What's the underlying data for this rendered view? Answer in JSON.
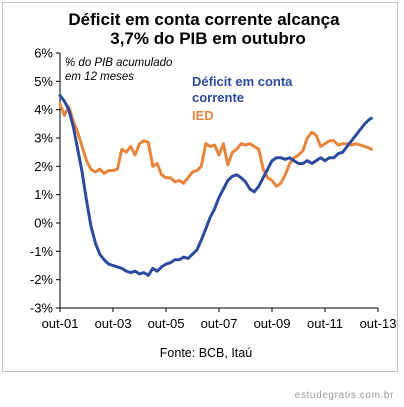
{
  "chart_data": {
    "type": "line",
    "title": "Déficit em conta corrente alcança 3,7% do PIB em outubro",
    "title_lines": [
      "Déficit em conta corrente alcança",
      "3,7% do PIB em outubro"
    ],
    "annotation_lines": [
      "% do PIB acumulado",
      "em 12 meses"
    ],
    "source": "Fonte: BCB, Itaú",
    "x_tick_labels": [
      "out-01",
      "out-03",
      "out-05",
      "out-07",
      "out-09",
      "out-11",
      "out-13"
    ],
    "y_tick_labels": [
      "-3%",
      "-2%",
      "-1%",
      "0%",
      "1%",
      "2%",
      "3%",
      "4%",
      "5%",
      "6%"
    ],
    "x_unit": "months since out-01",
    "x_range": [
      0,
      144
    ],
    "ylim": [
      -3,
      6
    ],
    "grid": false,
    "legend_placement": "inside, upper middle (direct labels)",
    "series": [
      {
        "name": "Déficit em conta corrente",
        "color": "#2e4a9e",
        "points": [
          [
            0,
            4.5
          ],
          [
            2,
            4.3
          ],
          [
            4,
            4.0
          ],
          [
            6,
            3.4
          ],
          [
            8,
            2.6
          ],
          [
            10,
            1.8
          ],
          [
            12,
            0.8
          ],
          [
            14,
            -0.1
          ],
          [
            16,
            -0.7
          ],
          [
            18,
            -1.1
          ],
          [
            20,
            -1.3
          ],
          [
            22,
            -1.45
          ],
          [
            24,
            -1.5
          ],
          [
            26,
            -1.55
          ],
          [
            28,
            -1.6
          ],
          [
            30,
            -1.7
          ],
          [
            32,
            -1.75
          ],
          [
            34,
            -1.7
          ],
          [
            36,
            -1.8
          ],
          [
            38,
            -1.75
          ],
          [
            40,
            -1.85
          ],
          [
            42,
            -1.6
          ],
          [
            44,
            -1.7
          ],
          [
            46,
            -1.55
          ],
          [
            48,
            -1.45
          ],
          [
            50,
            -1.4
          ],
          [
            52,
            -1.3
          ],
          [
            54,
            -1.3
          ],
          [
            56,
            -1.2
          ],
          [
            58,
            -1.25
          ],
          [
            60,
            -1.1
          ],
          [
            62,
            -0.95
          ],
          [
            64,
            -0.6
          ],
          [
            66,
            -0.2
          ],
          [
            68,
            0.2
          ],
          [
            70,
            0.5
          ],
          [
            72,
            0.9
          ],
          [
            74,
            1.2
          ],
          [
            76,
            1.5
          ],
          [
            78,
            1.65
          ],
          [
            80,
            1.7
          ],
          [
            82,
            1.6
          ],
          [
            84,
            1.45
          ],
          [
            86,
            1.2
          ],
          [
            88,
            1.1
          ],
          [
            90,
            1.3
          ],
          [
            92,
            1.6
          ],
          [
            94,
            1.9
          ],
          [
            96,
            2.2
          ],
          [
            98,
            2.3
          ],
          [
            100,
            2.3
          ],
          [
            102,
            2.25
          ],
          [
            104,
            2.3
          ],
          [
            106,
            2.2
          ],
          [
            108,
            2.1
          ],
          [
            110,
            2.1
          ],
          [
            112,
            2.2
          ],
          [
            114,
            2.1
          ],
          [
            116,
            2.2
          ],
          [
            118,
            2.3
          ],
          [
            120,
            2.2
          ],
          [
            122,
            2.3
          ],
          [
            124,
            2.3
          ],
          [
            126,
            2.45
          ],
          [
            128,
            2.5
          ],
          [
            130,
            2.7
          ],
          [
            132,
            2.9
          ],
          [
            134,
            3.1
          ],
          [
            136,
            3.3
          ],
          [
            138,
            3.5
          ],
          [
            140,
            3.65
          ],
          [
            141,
            3.7
          ]
        ]
      },
      {
        "name": "IED",
        "color": "#e8853d",
        "points": [
          [
            0,
            4.2
          ],
          [
            2,
            3.8
          ],
          [
            4,
            4.1
          ],
          [
            6,
            3.6
          ],
          [
            8,
            3.2
          ],
          [
            10,
            2.7
          ],
          [
            12,
            2.2
          ],
          [
            14,
            1.9
          ],
          [
            16,
            1.8
          ],
          [
            18,
            1.9
          ],
          [
            20,
            1.75
          ],
          [
            22,
            1.85
          ],
          [
            24,
            1.85
          ],
          [
            26,
            1.9
          ],
          [
            28,
            2.6
          ],
          [
            30,
            2.5
          ],
          [
            32,
            2.7
          ],
          [
            34,
            2.4
          ],
          [
            36,
            2.8
          ],
          [
            38,
            2.9
          ],
          [
            40,
            2.85
          ],
          [
            42,
            2.0
          ],
          [
            44,
            2.1
          ],
          [
            46,
            1.7
          ],
          [
            48,
            1.6
          ],
          [
            50,
            1.6
          ],
          [
            52,
            1.45
          ],
          [
            54,
            1.5
          ],
          [
            56,
            1.4
          ],
          [
            58,
            1.6
          ],
          [
            60,
            1.8
          ],
          [
            62,
            1.85
          ],
          [
            64,
            2.0
          ],
          [
            66,
            2.8
          ],
          [
            68,
            2.7
          ],
          [
            70,
            2.75
          ],
          [
            72,
            2.4
          ],
          [
            74,
            2.8
          ],
          [
            76,
            2.05
          ],
          [
            78,
            2.5
          ],
          [
            80,
            2.6
          ],
          [
            82,
            2.8
          ],
          [
            84,
            2.75
          ],
          [
            86,
            2.8
          ],
          [
            88,
            2.7
          ],
          [
            90,
            2.6
          ],
          [
            92,
            1.9
          ],
          [
            94,
            1.6
          ],
          [
            96,
            1.5
          ],
          [
            98,
            1.3
          ],
          [
            100,
            1.4
          ],
          [
            102,
            1.7
          ],
          [
            104,
            2.1
          ],
          [
            106,
            2.3
          ],
          [
            108,
            2.4
          ],
          [
            110,
            2.55
          ],
          [
            112,
            3.0
          ],
          [
            114,
            3.2
          ],
          [
            116,
            3.1
          ],
          [
            118,
            2.7
          ],
          [
            120,
            2.8
          ],
          [
            122,
            2.9
          ],
          [
            124,
            2.9
          ],
          [
            126,
            2.75
          ],
          [
            128,
            2.8
          ],
          [
            130,
            2.8
          ],
          [
            132,
            2.75
          ],
          [
            134,
            2.8
          ],
          [
            136,
            2.75
          ],
          [
            138,
            2.7
          ],
          [
            140,
            2.65
          ],
          [
            141,
            2.6
          ]
        ]
      }
    ]
  },
  "watermark": "estudegratis.com.br"
}
